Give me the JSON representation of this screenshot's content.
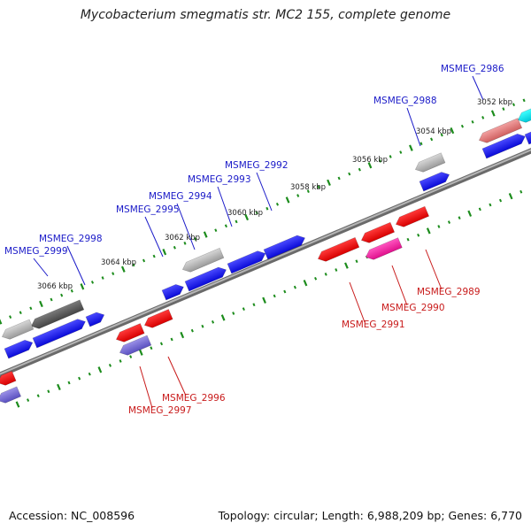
{
  "title": "Mycobacterium smegmatis str. MC2 155, complete genome",
  "footer": {
    "accession": "Accession: NC_008596",
    "info": "Topology: circular; Length: 6,988,209 bp; Genes: 6,770"
  },
  "colors": {
    "backbone": "#8f8f8f",
    "tick": "#1c8c1c",
    "forward_label": "#1a1ac8",
    "reverse_label": "#c81a1a",
    "gene_blue": "#1010e6",
    "gene_red": "#f00000"
  },
  "scale_labels": [
    "3052 kbp",
    "3054 kbp",
    "3056 kbp",
    "3058 kbp",
    "3060 kbp",
    "3062 kbp",
    "3064 kbp",
    "3066 kbp"
  ],
  "gene_labels_forward": [
    "MSMEG_2986",
    "MSMEG_2988",
    "MSMEG_2992",
    "MSMEG_2993",
    "MSMEG_2994",
    "MSMEG_2995",
    "MSMEG_2998",
    "MSMEG_2999"
  ],
  "gene_labels_reverse": [
    "MSMEG_2989",
    "MSMEG_2990",
    "MSMEG_2991",
    "MSMEG_2996",
    "MSMEG_2997"
  ]
}
